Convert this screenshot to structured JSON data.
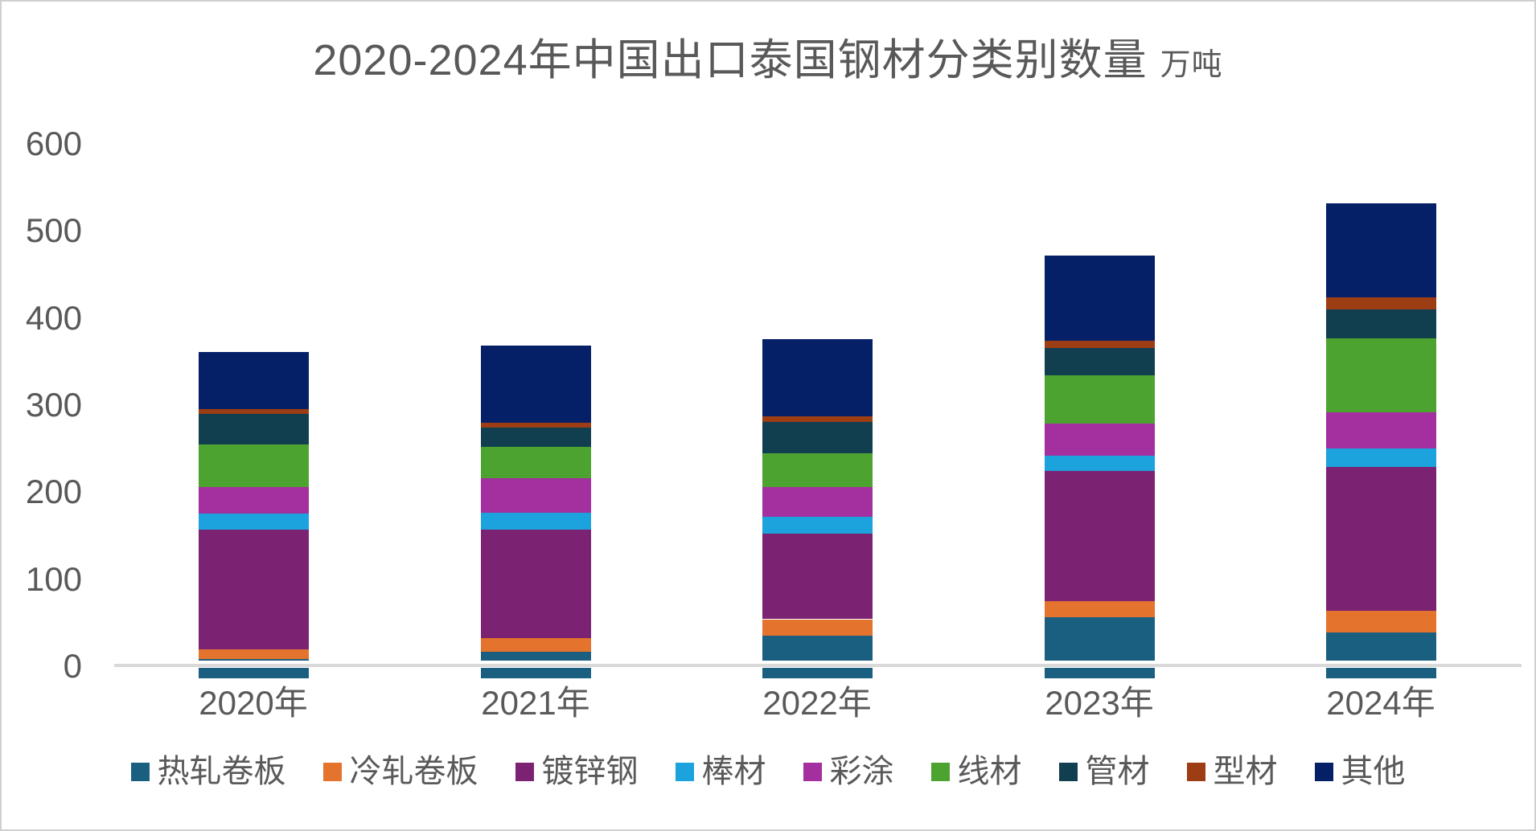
{
  "title": {
    "main": "2020-2024年中国出口泰国钢材分类别数量",
    "unit": "万吨"
  },
  "colors": {
    "text": "#595959",
    "axis_line": "#d9d9d9",
    "background": "#ffffff",
    "border": "#cfcfcf"
  },
  "chart_data": {
    "type": "bar",
    "subtype": "stacked-vertical",
    "title": "2020-2024年中国出口泰国钢材分类别数量",
    "unit_label": "万吨",
    "categories": [
      "2020年",
      "2021年",
      "2022年",
      "2023年",
      "2024年"
    ],
    "series": [
      {
        "name": "热轧卷板",
        "color": "#1B5F80",
        "values": [
          8,
          17,
          35,
          56,
          39
        ]
      },
      {
        "name": "冷轧卷板",
        "color": "#E4732E",
        "values": [
          11,
          15,
          19,
          19,
          25
        ]
      },
      {
        "name": "镀锌钢",
        "color": "#7B2372",
        "values": [
          138,
          125,
          98,
          149,
          165
        ]
      },
      {
        "name": "棒材",
        "color": "#1CA2DC",
        "values": [
          18,
          19,
          20,
          18,
          21
        ]
      },
      {
        "name": "彩涂",
        "color": "#A42F9F",
        "values": [
          31,
          40,
          34,
          37,
          42
        ]
      },
      {
        "name": "线材",
        "color": "#4DA32F",
        "values": [
          49,
          36,
          39,
          55,
          85
        ]
      },
      {
        "name": "管材",
        "color": "#123F4F",
        "values": [
          35,
          22,
          36,
          32,
          33
        ]
      },
      {
        "name": "型材",
        "color": "#9C3D14",
        "values": [
          5,
          6,
          6,
          8,
          14
        ]
      },
      {
        "name": "其他",
        "color": "#062067",
        "values": [
          66,
          88,
          89,
          98,
          108
        ]
      }
    ],
    "totals": [
      361,
      368,
      376,
      472,
      532
    ],
    "ylim": [
      0,
      600
    ],
    "yticks": [
      0,
      100,
      200,
      300,
      400,
      500,
      600
    ],
    "xlabel": "",
    "ylabel": "",
    "grid": false,
    "legend_position": "bottom",
    "notes": "bars extend slightly below the zero baseline with a white gap at the axis line"
  }
}
